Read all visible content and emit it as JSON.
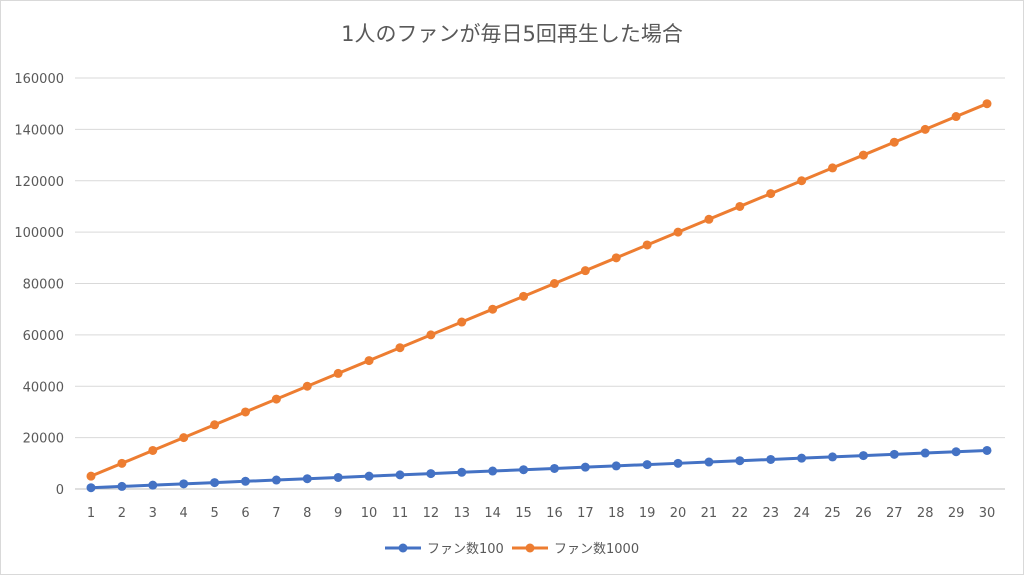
{
  "chart_data": {
    "type": "line",
    "title": "1人のファンが毎日5回再生した場合",
    "xlabel": "",
    "ylabel": "",
    "ylim": [
      0,
      160000
    ],
    "yticks": [
      0,
      20000,
      40000,
      60000,
      80000,
      100000,
      120000,
      140000,
      160000
    ],
    "grid": true,
    "legend": "bottom-center",
    "x": [
      1,
      2,
      3,
      4,
      5,
      6,
      7,
      8,
      9,
      10,
      11,
      12,
      13,
      14,
      15,
      16,
      17,
      18,
      19,
      20,
      21,
      22,
      23,
      24,
      25,
      26,
      27,
      28,
      29,
      30
    ],
    "series": [
      {
        "name": "ファン数100",
        "color": "#4472c4",
        "values": [
          500,
          1000,
          1500,
          2000,
          2500,
          3000,
          3500,
          4000,
          4500,
          5000,
          5500,
          6000,
          6500,
          7000,
          7500,
          8000,
          8500,
          9000,
          9500,
          10000,
          10500,
          11000,
          11500,
          12000,
          12500,
          13000,
          13500,
          14000,
          14500,
          15000
        ]
      },
      {
        "name": "ファン数1000",
        "color": "#ed7d31",
        "values": [
          5000,
          10000,
          15000,
          20000,
          25000,
          30000,
          35000,
          40000,
          45000,
          50000,
          55000,
          60000,
          65000,
          70000,
          75000,
          80000,
          85000,
          90000,
          95000,
          100000,
          105000,
          110000,
          115000,
          120000,
          125000,
          130000,
          135000,
          140000,
          145000,
          150000
        ]
      }
    ]
  }
}
